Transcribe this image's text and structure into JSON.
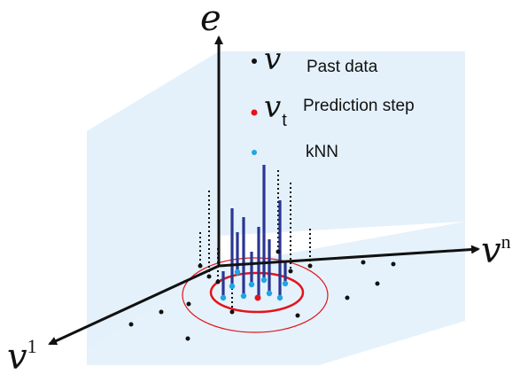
{
  "axes": {
    "vertical_label": "e",
    "right_label_base": "v",
    "right_label_sup": "n",
    "left_label_base": "v",
    "left_label_sup": "1"
  },
  "legend": {
    "items": [
      {
        "symbol": "v",
        "subscript": "",
        "text": "Past data",
        "dot_color": "#111111"
      },
      {
        "symbol": "v",
        "subscript": "t",
        "text": "Prediction step",
        "dot_color": "#e3141b"
      },
      {
        "symbol": "",
        "subscript": "",
        "text": "kNN",
        "dot_color": "#1ea6e6"
      }
    ]
  },
  "colors": {
    "plane_fill": "#e4f1fb",
    "axis": "#111111",
    "dotted_stem": "#111111",
    "knn_stem": "#2a3693",
    "knn_point": "#1ea6e6",
    "prediction_point": "#e3141b",
    "circle": "#e3141b"
  }
}
